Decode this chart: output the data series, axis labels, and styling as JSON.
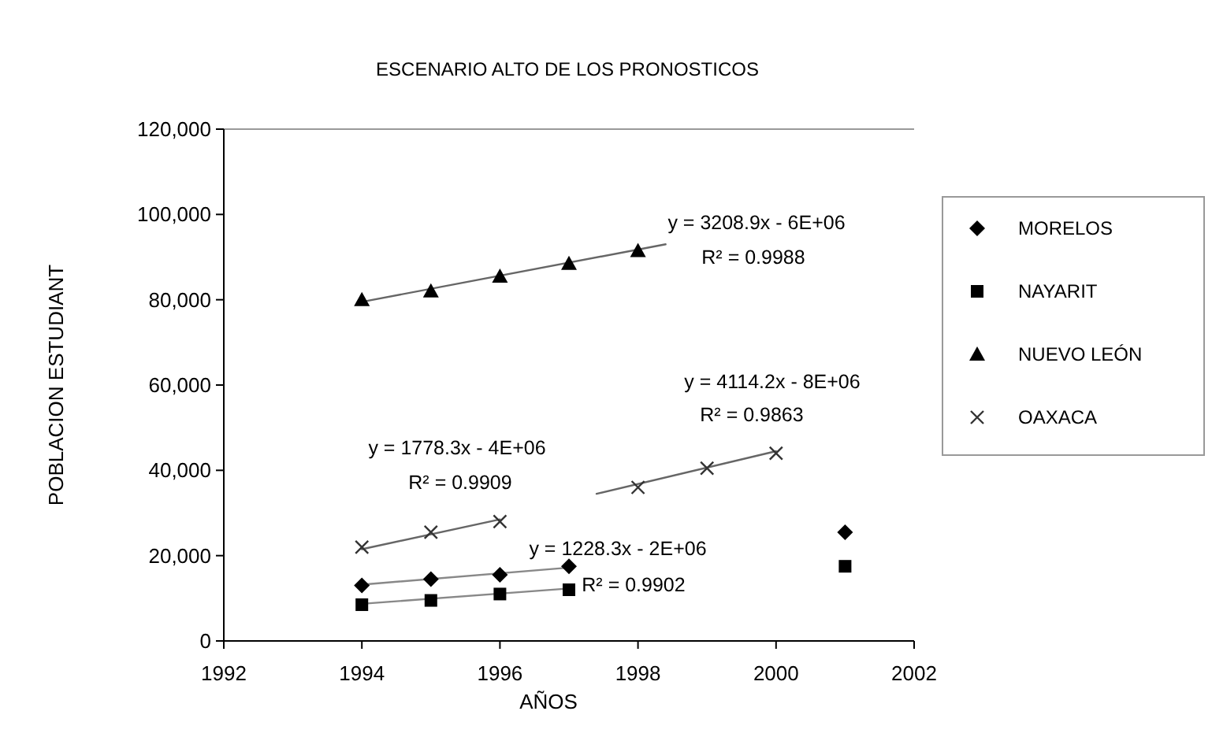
{
  "chart_data": {
    "type": "scatter",
    "title": "ESCENARIO ALTO DE LOS PRONOSTICOS",
    "xlabel": "AÑOS",
    "ylabel": "POBLACION ESTUDIANT",
    "xlim": [
      1992,
      2002
    ],
    "xticks": [
      1992,
      1994,
      1996,
      1998,
      2000,
      2002
    ],
    "ylim": [
      0,
      120000
    ],
    "yticks": [
      {
        "value": 0,
        "label": "0"
      },
      {
        "value": 20000,
        "label": "20,000"
      },
      {
        "value": 40000,
        "label": "40,000"
      },
      {
        "value": 60000,
        "label": "60,000"
      },
      {
        "value": 80000,
        "label": "80,000"
      },
      {
        "value": 100000,
        "label": "100,000"
      },
      {
        "value": 120000,
        "label": "120,000"
      }
    ],
    "grid": false,
    "legend": "right",
    "series": [
      {
        "name": "MORELOS",
        "color": "#000000",
        "marker": "diamond",
        "x": [
          1994,
          1995,
          1996,
          1997,
          2001
        ],
        "values": [
          13000,
          14500,
          15500,
          17500,
          25500
        ]
      },
      {
        "name": "NAYARIT",
        "color": "#000000",
        "marker": "square",
        "x": [
          1994,
          1995,
          1996,
          1997,
          2001
        ],
        "values": [
          8500,
          9500,
          11000,
          12000,
          17500
        ]
      },
      {
        "name": "NUEVO LEÓN",
        "color": "#000000",
        "marker": "triangle",
        "x": [
          1994,
          1995,
          1996,
          1997,
          1998
        ],
        "values": [
          80000,
          82000,
          85500,
          88500,
          91500
        ]
      },
      {
        "name": "OAXACA",
        "color": "#333333",
        "marker": "cross",
        "x": [
          1994,
          1995,
          1996,
          1998,
          1999,
          2000
        ],
        "values": [
          22000,
          25500,
          28000,
          36000,
          40500,
          44000
        ]
      },
      {
        "type": "line",
        "color": "#666666",
        "marker": "none",
        "x": [
          1994,
          1998.4
        ],
        "values": [
          79500,
          93000
        ]
      },
      {
        "type": "line",
        "color": "#666666",
        "marker": "none",
        "x": [
          1994,
          1996,
          1996.5,
          1997.4,
          2000
        ],
        "values": [
          21500,
          28500,
          null,
          34500,
          44500
        ]
      },
      {
        "type": "line",
        "color": "#888888",
        "marker": "none",
        "x": [
          1994,
          1997
        ],
        "values": [
          13200,
          17200
        ]
      },
      {
        "type": "line",
        "color": "#888888",
        "marker": "none",
        "x": [
          1994,
          1997
        ],
        "values": [
          8700,
          12300
        ]
      }
    ],
    "annotations": [
      "y = 3208.9x - 6E+06",
      "R² = 0.9988",
      "y = 4114.2x - 8E+06",
      "R² = 0.9863",
      "y = 1778.3x - 4E+06",
      "R² = 0.9909",
      "y = 1228.3x - 2E+06",
      "R² = 0.9902"
    ]
  }
}
